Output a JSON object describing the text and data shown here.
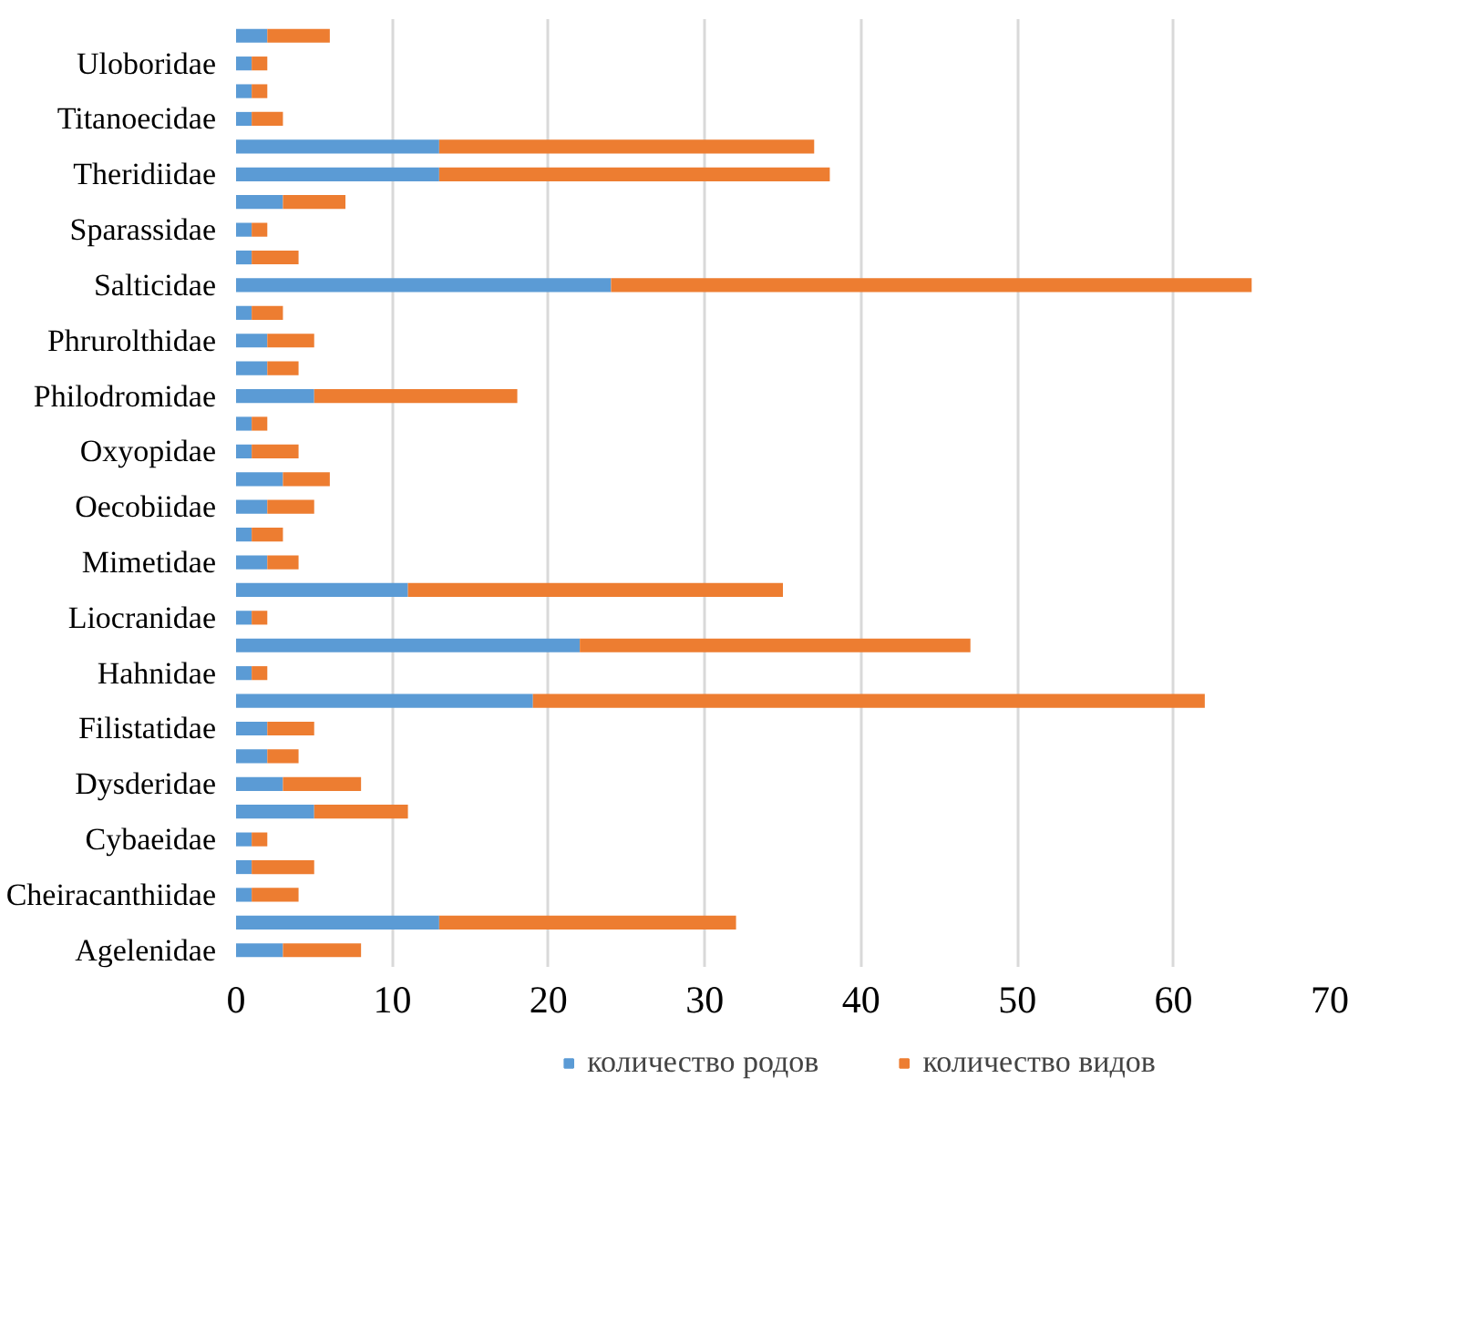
{
  "chart_data": {
    "type": "bar",
    "orientation": "horizontal",
    "stacked": true,
    "categories": [
      null,
      "Uloboridae",
      null,
      "Titanoecidae",
      null,
      "Theridiidae",
      null,
      "Sparassidae",
      null,
      "Salticidae",
      null,
      "Phrurolthidae",
      null,
      "Philodromidae",
      null,
      "Oxyopidae",
      null,
      "Oecobiidae",
      null,
      "Mimetidae",
      null,
      "Liocranidae",
      null,
      "Hahnidae",
      null,
      "Filistatidae",
      null,
      "Dysderidae",
      null,
      "Cybaeidae",
      null,
      "Cheiracanthiidae",
      null,
      "Agelenidae"
    ],
    "series": [
      {
        "name": "количество родов",
        "color": "#5b9bd5",
        "values": [
          2,
          1,
          1,
          1,
          13,
          13,
          3,
          1,
          1,
          24,
          1,
          2,
          2,
          5,
          1,
          1,
          3,
          2,
          1,
          2,
          11,
          1,
          22,
          1,
          19,
          2,
          2,
          3,
          5,
          1,
          1,
          1,
          13,
          3
        ]
      },
      {
        "name": "количество видов",
        "color": "#ed7d31",
        "values": [
          4,
          1,
          1,
          2,
          24,
          25,
          4,
          1,
          3,
          41,
          2,
          3,
          2,
          13,
          1,
          3,
          3,
          3,
          2,
          2,
          24,
          1,
          25,
          1,
          43,
          3,
          2,
          5,
          6,
          1,
          4,
          3,
          19,
          5
        ]
      }
    ],
    "xlim": [
      0,
      70
    ],
    "xticks": [
      0,
      10,
      20,
      30,
      40,
      50,
      60,
      70
    ],
    "grid": "x",
    "legend": "bottom"
  }
}
